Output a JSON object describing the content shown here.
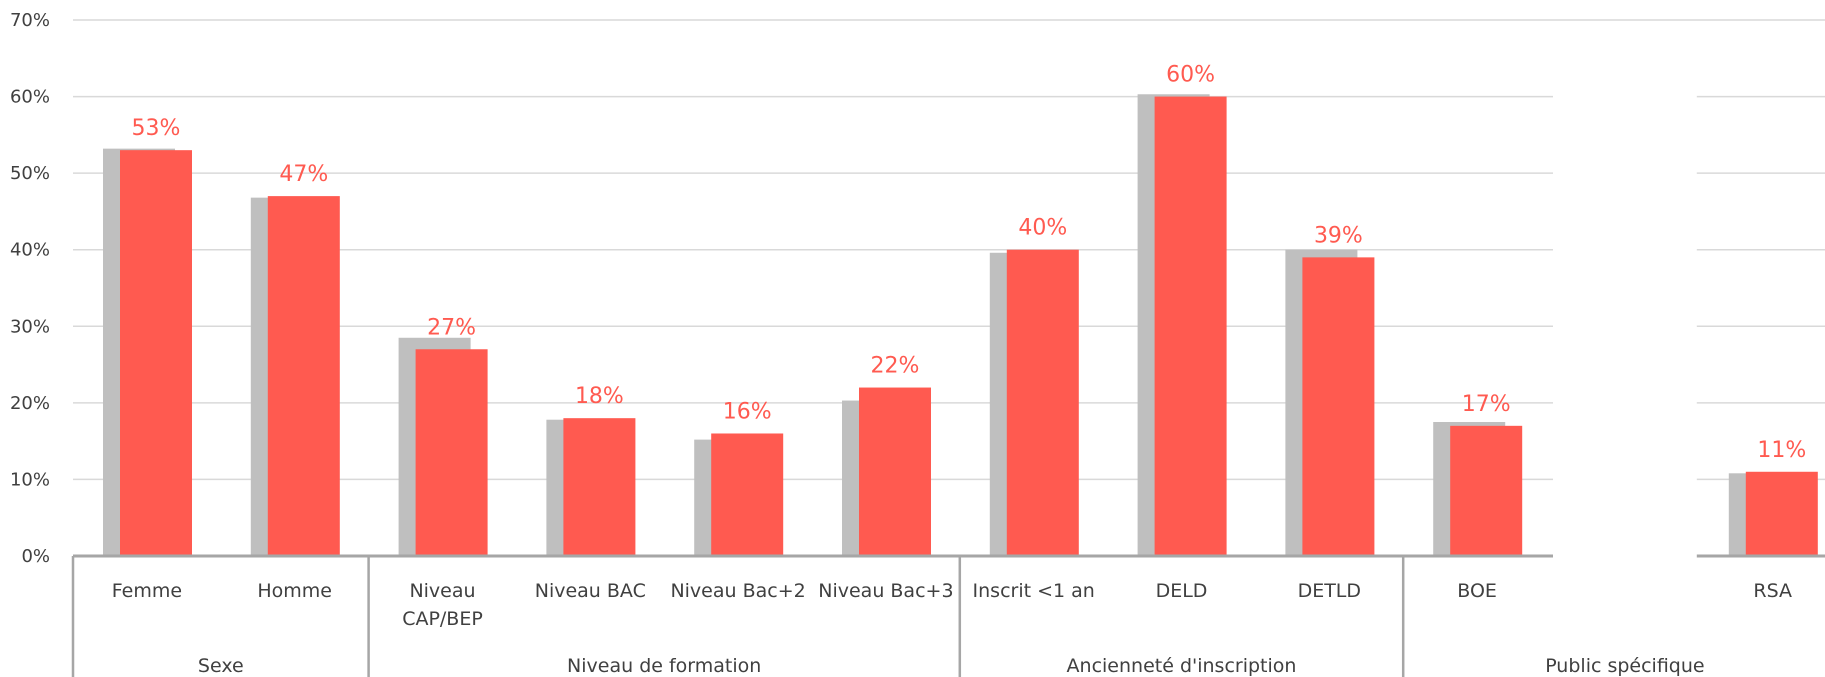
{
  "chart_data": {
    "type": "bar",
    "ylim": [
      0,
      70
    ],
    "yticks": [
      "0%",
      "10%",
      "20%",
      "30%",
      "40%",
      "50%",
      "60%",
      "70%"
    ],
    "grid": true,
    "legend": "none",
    "colors": {
      "primary": "#ff5a50",
      "secondary": "#bfbfbf"
    },
    "categories": [
      {
        "lines": [
          "Femme"
        ],
        "group": 0
      },
      {
        "lines": [
          "Homme"
        ],
        "group": 0
      },
      {
        "lines": [
          "Niveau",
          "CAP/BEP"
        ],
        "group": 1
      },
      {
        "lines": [
          "Niveau BAC"
        ],
        "group": 1
      },
      {
        "lines": [
          "Niveau Bac+2"
        ],
        "group": 1
      },
      {
        "lines": [
          "Niveau Bac+3"
        ],
        "group": 1
      },
      {
        "lines": [
          "Inscrit <1 an"
        ],
        "group": 2
      },
      {
        "lines": [
          "DELD"
        ],
        "group": 2
      },
      {
        "lines": [
          "DETLD"
        ],
        "group": 2
      },
      {
        "lines": [
          "BOE"
        ],
        "group": 3
      },
      {
        "lines": [
          ""
        ],
        "group": 3
      },
      {
        "lines": [
          "RSA"
        ],
        "group": 3
      }
    ],
    "groups": [
      "Sexe",
      "Niveau de formation",
      "Ancienneté d'inscription",
      "Public spécifique"
    ],
    "series": [
      {
        "values": [
          53.2,
          46.8,
          28.5,
          17.8,
          15.2,
          20.3,
          39.6,
          60.3,
          40.0,
          17.5,
          0,
          10.8
        ]
      },
      {
        "values": [
          53,
          47,
          27,
          18,
          16,
          22,
          40,
          60,
          39,
          17,
          0,
          11
        ],
        "labels": [
          "53%",
          "47%",
          "27%",
          "18%",
          "16%",
          "22%",
          "40%",
          "60%",
          "39%",
          "17%",
          "",
          "11%"
        ]
      }
    ]
  }
}
